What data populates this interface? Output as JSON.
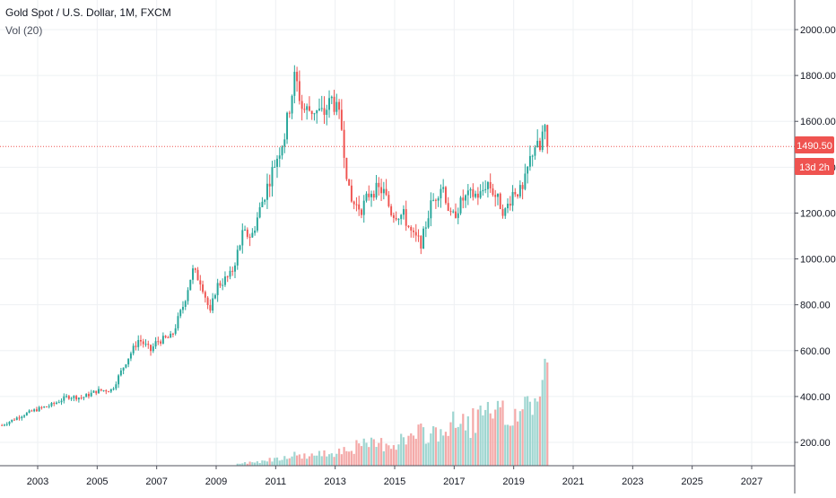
{
  "legend": {
    "title": "Gold Spot / U.S. Dollar, 1M, FXCM",
    "volume_label": "Vol (20)"
  },
  "price_badge": {
    "price": "1490.50",
    "countdown": "13d 2h",
    "color": "#ef5350"
  },
  "colors": {
    "up": "#26a69a",
    "down": "#ef5350",
    "up_volume": "#9fd6d1",
    "down_volume": "#f4a9a8",
    "grid": "#eef0f3",
    "axis_text": "#131722"
  },
  "chart_data": {
    "type": "candlestick",
    "title": "Gold Spot / U.S. Dollar, 1M, FXCM",
    "y_axis": {
      "side": "right",
      "ticks": [
        "2000.00",
        "1800.00",
        "1600.00",
        "1400.00",
        "1200.00",
        "1000.00",
        "800.00",
        "600.00",
        "400.00",
        "200.00"
      ]
    },
    "x_axis": {
      "ticks": [
        "2003",
        "2005",
        "2007",
        "2009",
        "2011",
        "2013",
        "2015",
        "2017",
        "2019",
        "2021",
        "2023",
        "2025",
        "2027"
      ]
    },
    "last_price": 1490.5,
    "grid": true,
    "price_anchors": [
      [
        2001.8,
        275
      ],
      [
        2002.5,
        320
      ],
      [
        2003.0,
        345
      ],
      [
        2003.5,
        365
      ],
      [
        2004.0,
        400
      ],
      [
        2004.5,
        395
      ],
      [
        2005.0,
        425
      ],
      [
        2005.5,
        430
      ],
      [
        2006.0,
        560
      ],
      [
        2006.4,
        650
      ],
      [
        2006.8,
        600
      ],
      [
        2007.0,
        640
      ],
      [
        2007.5,
        660
      ],
      [
        2007.9,
        800
      ],
      [
        2008.2,
        950
      ],
      [
        2008.5,
        900
      ],
      [
        2008.8,
        760
      ],
      [
        2009.0,
        880
      ],
      [
        2009.5,
        930
      ],
      [
        2009.9,
        1110
      ],
      [
        2010.2,
        1100
      ],
      [
        2010.5,
        1230
      ],
      [
        2010.9,
        1390
      ],
      [
        2011.3,
        1540
      ],
      [
        2011.65,
        1800
      ],
      [
        2011.9,
        1650
      ],
      [
        2012.3,
        1650
      ],
      [
        2012.6,
        1630
      ],
      [
        2012.9,
        1700
      ],
      [
        2013.2,
        1590
      ],
      [
        2013.5,
        1250
      ],
      [
        2013.9,
        1220
      ],
      [
        2014.2,
        1300
      ],
      [
        2014.6,
        1300
      ],
      [
        2014.9,
        1200
      ],
      [
        2015.3,
        1190
      ],
      [
        2015.6,
        1100
      ],
      [
        2015.9,
        1070
      ],
      [
        2016.2,
        1230
      ],
      [
        2016.6,
        1330
      ],
      [
        2016.9,
        1170
      ],
      [
        2017.3,
        1260
      ],
      [
        2017.6,
        1280
      ],
      [
        2017.9,
        1280
      ],
      [
        2018.1,
        1340
      ],
      [
        2018.5,
        1250
      ],
      [
        2018.7,
        1200
      ],
      [
        2019.0,
        1300
      ],
      [
        2019.3,
        1290
      ],
      [
        2019.5,
        1410
      ],
      [
        2019.7,
        1500
      ],
      [
        2019.9,
        1470
      ],
      [
        2020.0,
        1580
      ],
      [
        2020.15,
        1490.5
      ]
    ],
    "volume_anchors": [
      [
        2009.7,
        10
      ],
      [
        2010.5,
        25
      ],
      [
        2011.0,
        40
      ],
      [
        2011.5,
        60
      ],
      [
        2012.0,
        55
      ],
      [
        2012.5,
        60
      ],
      [
        2013.0,
        80
      ],
      [
        2013.5,
        100
      ],
      [
        2014.0,
        110
      ],
      [
        2014.5,
        120
      ],
      [
        2015.0,
        130
      ],
      [
        2015.5,
        150
      ],
      [
        2016.0,
        175
      ],
      [
        2016.5,
        190
      ],
      [
        2017.0,
        220
      ],
      [
        2017.5,
        240
      ],
      [
        2018.0,
        265
      ],
      [
        2018.5,
        260
      ],
      [
        2019.0,
        280
      ],
      [
        2019.5,
        340
      ],
      [
        2019.9,
        390
      ],
      [
        2020.15,
        520
      ]
    ],
    "volume_scale": {
      "min": 0,
      "max": 600
    }
  }
}
